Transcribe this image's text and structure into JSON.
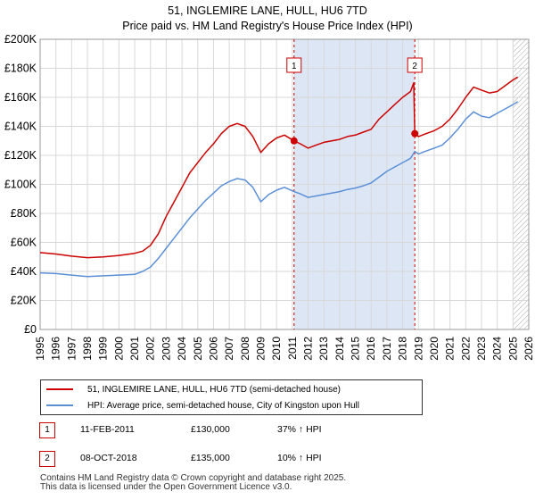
{
  "title_line1": "51, INGLEMIRE LANE, HULL, HU6 7TD",
  "title_line2": "Price paid vs. HM Land Registry's House Price Index (HPI)",
  "chart_data": {
    "type": "line",
    "xlim": [
      1995,
      2026
    ],
    "ylim": [
      0,
      200000
    ],
    "y_ticks": [
      0,
      20000,
      40000,
      60000,
      80000,
      100000,
      120000,
      140000,
      160000,
      180000,
      200000
    ],
    "y_tick_labels": [
      "£0",
      "£20K",
      "£40K",
      "£60K",
      "£80K",
      "£100K",
      "£120K",
      "£140K",
      "£160K",
      "£180K",
      "£200K"
    ],
    "x_ticks": [
      1995,
      1996,
      1997,
      1998,
      1999,
      2000,
      2001,
      2002,
      2003,
      2004,
      2005,
      2006,
      2007,
      2008,
      2009,
      2010,
      2011,
      2012,
      2013,
      2014,
      2015,
      2016,
      2017,
      2018,
      2019,
      2020,
      2021,
      2022,
      2023,
      2024,
      2025,
      2026
    ],
    "grid": true,
    "shaded_spans": [
      [
        2011.11,
        2018.77
      ]
    ],
    "hatched_from": 2025.0,
    "series": [
      {
        "name": "51, INGLEMIRE LANE, HULL, HU6 7TD (semi-detached house)",
        "color": "#cc0000",
        "points": [
          [
            1995,
            53000
          ],
          [
            1996,
            52000
          ],
          [
            1997,
            50500
          ],
          [
            1998,
            49500
          ],
          [
            1999,
            50000
          ],
          [
            2000,
            51000
          ],
          [
            2001,
            52500
          ],
          [
            2001.5,
            54000
          ],
          [
            2002,
            58000
          ],
          [
            2002.5,
            66000
          ],
          [
            2003,
            78000
          ],
          [
            2003.5,
            88000
          ],
          [
            2004,
            98000
          ],
          [
            2004.5,
            108000
          ],
          [
            2005,
            115000
          ],
          [
            2005.5,
            122000
          ],
          [
            2006,
            128000
          ],
          [
            2006.5,
            135000
          ],
          [
            2007,
            140000
          ],
          [
            2007.5,
            142000
          ],
          [
            2008,
            140000
          ],
          [
            2008.5,
            133000
          ],
          [
            2009,
            122000
          ],
          [
            2009.5,
            128000
          ],
          [
            2010,
            132000
          ],
          [
            2010.5,
            134000
          ],
          [
            2011.11,
            130000
          ],
          [
            2011.5,
            128000
          ],
          [
            2012,
            125000
          ],
          [
            2012.5,
            127000
          ],
          [
            2013,
            129000
          ],
          [
            2013.5,
            130000
          ],
          [
            2014,
            131000
          ],
          [
            2014.5,
            133000
          ],
          [
            2015,
            134000
          ],
          [
            2015.5,
            136000
          ],
          [
            2016,
            138000
          ],
          [
            2016.5,
            145000
          ],
          [
            2017,
            150000
          ],
          [
            2017.5,
            155000
          ],
          [
            2018,
            160000
          ],
          [
            2018.5,
            164000
          ],
          [
            2018.7,
            170000
          ],
          [
            2018.77,
            135000
          ],
          [
            2019,
            133000
          ],
          [
            2019.5,
            135000
          ],
          [
            2020,
            137000
          ],
          [
            2020.5,
            140000
          ],
          [
            2021,
            145000
          ],
          [
            2021.5,
            152000
          ],
          [
            2022,
            160000
          ],
          [
            2022.5,
            167000
          ],
          [
            2023,
            165000
          ],
          [
            2023.5,
            163000
          ],
          [
            2024,
            164000
          ],
          [
            2024.5,
            168000
          ],
          [
            2025,
            172000
          ],
          [
            2025.3,
            174000
          ]
        ]
      },
      {
        "name": "HPI: Average price, semi-detached house, City of Kingston upon Hull",
        "color": "#5b8fd6",
        "points": [
          [
            1995,
            39000
          ],
          [
            1996,
            38500
          ],
          [
            1997,
            37500
          ],
          [
            1998,
            36500
          ],
          [
            1999,
            37000
          ],
          [
            2000,
            37500
          ],
          [
            2001,
            38000
          ],
          [
            2001.5,
            40000
          ],
          [
            2002,
            43000
          ],
          [
            2002.5,
            49000
          ],
          [
            2003,
            56000
          ],
          [
            2003.5,
            63000
          ],
          [
            2004,
            70000
          ],
          [
            2004.5,
            77000
          ],
          [
            2005,
            83000
          ],
          [
            2005.5,
            89000
          ],
          [
            2006,
            94000
          ],
          [
            2006.5,
            99000
          ],
          [
            2007,
            102000
          ],
          [
            2007.5,
            104000
          ],
          [
            2008,
            103000
          ],
          [
            2008.5,
            98000
          ],
          [
            2009,
            88000
          ],
          [
            2009.5,
            93000
          ],
          [
            2010,
            96000
          ],
          [
            2010.5,
            98000
          ],
          [
            2011.11,
            95000
          ],
          [
            2011.5,
            93500
          ],
          [
            2012,
            91000
          ],
          [
            2012.5,
            92000
          ],
          [
            2013,
            93000
          ],
          [
            2013.5,
            94000
          ],
          [
            2014,
            95000
          ],
          [
            2014.5,
            96500
          ],
          [
            2015,
            97500
          ],
          [
            2015.5,
            99000
          ],
          [
            2016,
            101000
          ],
          [
            2016.5,
            105000
          ],
          [
            2017,
            109000
          ],
          [
            2017.5,
            112000
          ],
          [
            2018,
            115000
          ],
          [
            2018.5,
            118000
          ],
          [
            2018.77,
            122700
          ],
          [
            2019,
            121000
          ],
          [
            2019.5,
            123000
          ],
          [
            2020,
            125000
          ],
          [
            2020.5,
            127000
          ],
          [
            2021,
            132000
          ],
          [
            2021.5,
            138000
          ],
          [
            2022,
            145000
          ],
          [
            2022.5,
            150000
          ],
          [
            2023,
            147000
          ],
          [
            2023.5,
            146000
          ],
          [
            2024,
            149000
          ],
          [
            2024.5,
            152000
          ],
          [
            2025,
            155000
          ],
          [
            2025.3,
            157000
          ]
        ]
      }
    ],
    "sales": [
      {
        "label": "1",
        "x": 2011.11,
        "price": 130000
      },
      {
        "label": "2",
        "x": 2018.77,
        "price": 135000
      }
    ]
  },
  "legend": {
    "red_label": "51, INGLEMIRE LANE, HULL, HU6 7TD (semi-detached house)",
    "blue_label": "HPI: Average price, semi-detached house, City of Kingston upon Hull"
  },
  "sales_table": [
    {
      "num": "1",
      "date": "11-FEB-2011",
      "price": "£130,000",
      "hpi": "37% ↑ HPI"
    },
    {
      "num": "2",
      "date": "08-OCT-2018",
      "price": "£135,000",
      "hpi": "10% ↑ HPI"
    }
  ],
  "footer_line1": "Contains HM Land Registry data © Crown copyright and database right 2025.",
  "footer_line2": "This data is licensed under the Open Government Licence v3.0."
}
